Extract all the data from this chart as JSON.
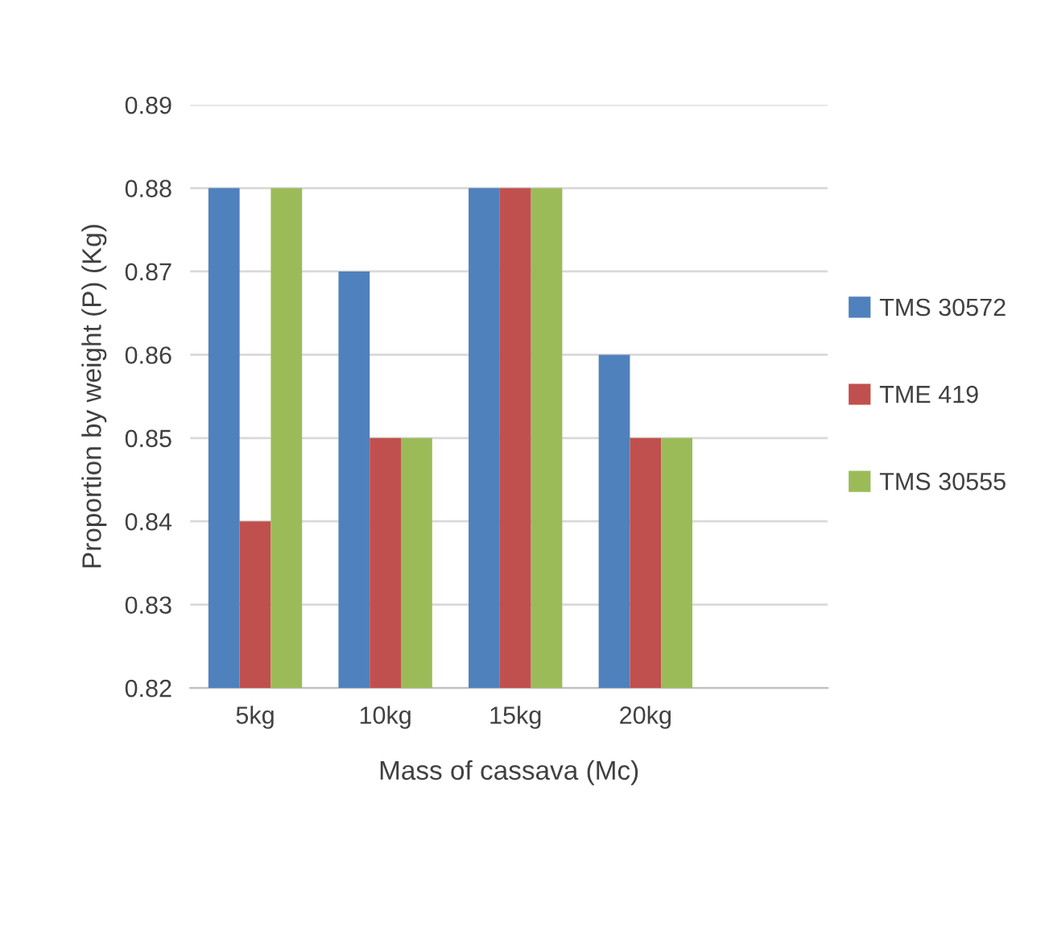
{
  "chart_data": {
    "type": "bar",
    "xlabel": "Mass of cassava (Mc)",
    "ylabel": "Proportion by weight (P) (Kg)",
    "categories": [
      "5kg",
      "10kg",
      "15kg",
      "20kg"
    ],
    "series": [
      {
        "name": "TMS 30572",
        "color": "#4f81bd",
        "values": [
          0.88,
          0.87,
          0.88,
          0.86
        ]
      },
      {
        "name": "TME 419",
        "color": "#c0504d",
        "values": [
          0.84,
          0.85,
          0.88,
          0.85
        ]
      },
      {
        "name": "TMS 30555",
        "color": "#9bbb59",
        "values": [
          0.88,
          0.85,
          0.88,
          0.85
        ]
      }
    ],
    "ylim": [
      0.82,
      0.89
    ],
    "yticks": [
      0.82,
      0.83,
      0.84,
      0.85,
      0.86,
      0.87,
      0.88,
      0.89
    ],
    "grid": "y",
    "legend": "right"
  }
}
